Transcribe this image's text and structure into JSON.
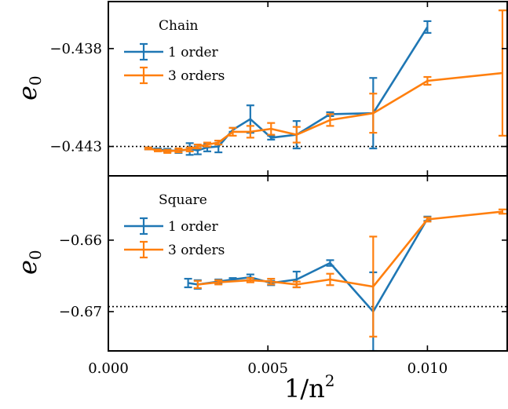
{
  "chart_data": [
    {
      "type": "line",
      "title": "Chain",
      "xlabel": "1/n",
      "xlabel_sup": "2",
      "ylabel": "e",
      "ylabel_sub": "0",
      "xlim": [
        0.0,
        0.0125
      ],
      "ylim": [
        -0.4445,
        -0.4356
      ],
      "yticks": [
        "−0.438",
        "−0.443"
      ],
      "ytick_values": [
        -0.438,
        -0.443
      ],
      "reference_line": -0.443,
      "legend_loc": "upper-left",
      "series": [
        {
          "name": "1 order",
          "color": "#1f77b4",
          "points": [
            {
              "x": 0.00125,
              "y": -0.4431,
              "err": 5e-05
            },
            {
              "x": 0.00155,
              "y": -0.44315,
              "err": 5e-05
            },
            {
              "x": 0.00185,
              "y": -0.4432,
              "err": 8e-05
            },
            {
              "x": 0.0022,
              "y": -0.44323,
              "err": 0.0001
            },
            {
              "x": 0.00255,
              "y": -0.44313,
              "err": 0.0003
            },
            {
              "x": 0.0028,
              "y": -0.4432,
              "err": 0.0002
            },
            {
              "x": 0.0031,
              "y": -0.44305,
              "err": 0.0002
            },
            {
              "x": 0.00345,
              "y": -0.443,
              "err": 0.0003
            },
            {
              "x": 0.0039,
              "y": -0.44215,
              "err": 0.0001
            },
            {
              "x": 0.00445,
              "y": -0.4416,
              "err": 0.0007
            },
            {
              "x": 0.0051,
              "y": -0.44255,
              "err": 0.0001
            },
            {
              "x": 0.0059,
              "y": -0.4424,
              "err": 0.0007
            },
            {
              "x": 0.00695,
              "y": -0.44135,
              "err": 0.0001
            },
            {
              "x": 0.0083,
              "y": -0.4413,
              "err": 0.0018
            },
            {
              "x": 0.01,
              "y": -0.4369,
              "err": 0.0003
            }
          ]
        },
        {
          "name": "3 orders",
          "color": "#ff7f0e",
          "points": [
            {
              "x": 0.00125,
              "y": -0.4431,
              "err": 5e-05
            },
            {
              "x": 0.00155,
              "y": -0.4432,
              "err": 5e-05
            },
            {
              "x": 0.00185,
              "y": -0.44325,
              "err": 8e-05
            },
            {
              "x": 0.0022,
              "y": -0.4432,
              "err": 0.0001
            },
            {
              "x": 0.00255,
              "y": -0.44315,
              "err": 0.0001
            },
            {
              "x": 0.0028,
              "y": -0.443,
              "err": 0.0001
            },
            {
              "x": 0.0031,
              "y": -0.4429,
              "err": 0.0001
            },
            {
              "x": 0.00345,
              "y": -0.4428,
              "err": 0.0001
            },
            {
              "x": 0.0039,
              "y": -0.44225,
              "err": 0.0002
            },
            {
              "x": 0.00445,
              "y": -0.44225,
              "err": 0.0003
            },
            {
              "x": 0.0051,
              "y": -0.4421,
              "err": 0.0003
            },
            {
              "x": 0.0059,
              "y": -0.4424,
              "err": 0.0004
            },
            {
              "x": 0.00695,
              "y": -0.44165,
              "err": 0.0003
            },
            {
              "x": 0.0083,
              "y": -0.4413,
              "err": 0.001
            },
            {
              "x": 0.01,
              "y": -0.43965,
              "err": 0.0002
            },
            {
              "x": 0.01235,
              "y": -0.43925,
              "err": 0.0032
            }
          ]
        }
      ]
    },
    {
      "type": "line",
      "title": "Square",
      "xlabel": "1/n",
      "xlabel_sup": "2",
      "ylabel": "e",
      "ylabel_sub": "0",
      "xlim": [
        0.0,
        0.0125
      ],
      "ylim": [
        -0.6755,
        -0.651
      ],
      "xticks": [
        "0.000",
        "0.005",
        "0.010"
      ],
      "xtick_values": [
        0.0,
        0.005,
        0.01
      ],
      "yticks": [
        "−0.66",
        "−0.67"
      ],
      "ytick_values": [
        -0.66,
        -0.67
      ],
      "reference_line": -0.6693,
      "legend_loc": "upper-left",
      "series": [
        {
          "name": "1 order",
          "color": "#1f77b4",
          "points": [
            {
              "x": 0.0025,
              "y": -0.666,
              "err": 0.0006
            },
            {
              "x": 0.0028,
              "y": -0.6662,
              "err": 0.0006
            },
            {
              "x": 0.00345,
              "y": -0.6658,
              "err": 0.0003
            },
            {
              "x": 0.0039,
              "y": -0.6655,
              "err": 0.0002
            },
            {
              "x": 0.00445,
              "y": -0.6652,
              "err": 0.0004
            },
            {
              "x": 0.0051,
              "y": -0.666,
              "err": 0.0003
            },
            {
              "x": 0.0059,
              "y": -0.6655,
              "err": 0.0011
            },
            {
              "x": 0.00695,
              "y": -0.6632,
              "err": 0.0004
            },
            {
              "x": 0.0083,
              "y": -0.67,
              "err": 0.0055
            },
            {
              "x": 0.01,
              "y": -0.657,
              "err": 0.0003
            }
          ]
        },
        {
          "name": "3 orders",
          "color": "#ff7f0e",
          "points": [
            {
              "x": 0.0028,
              "y": -0.6662,
              "err": 0.0005
            },
            {
              "x": 0.00345,
              "y": -0.6659,
              "err": 0.0003
            },
            {
              "x": 0.00445,
              "y": -0.6656,
              "err": 0.0003
            },
            {
              "x": 0.0051,
              "y": -0.6658,
              "err": 0.0004
            },
            {
              "x": 0.0059,
              "y": -0.6662,
              "err": 0.0004
            },
            {
              "x": 0.00695,
              "y": -0.6655,
              "err": 0.0008
            },
            {
              "x": 0.0083,
              "y": -0.6665,
              "err": 0.007
            },
            {
              "x": 0.01,
              "y": -0.6571,
              "err": 0.0003
            },
            {
              "x": 0.01235,
              "y": -0.656,
              "err": 0.0003
            }
          ]
        }
      ]
    }
  ]
}
